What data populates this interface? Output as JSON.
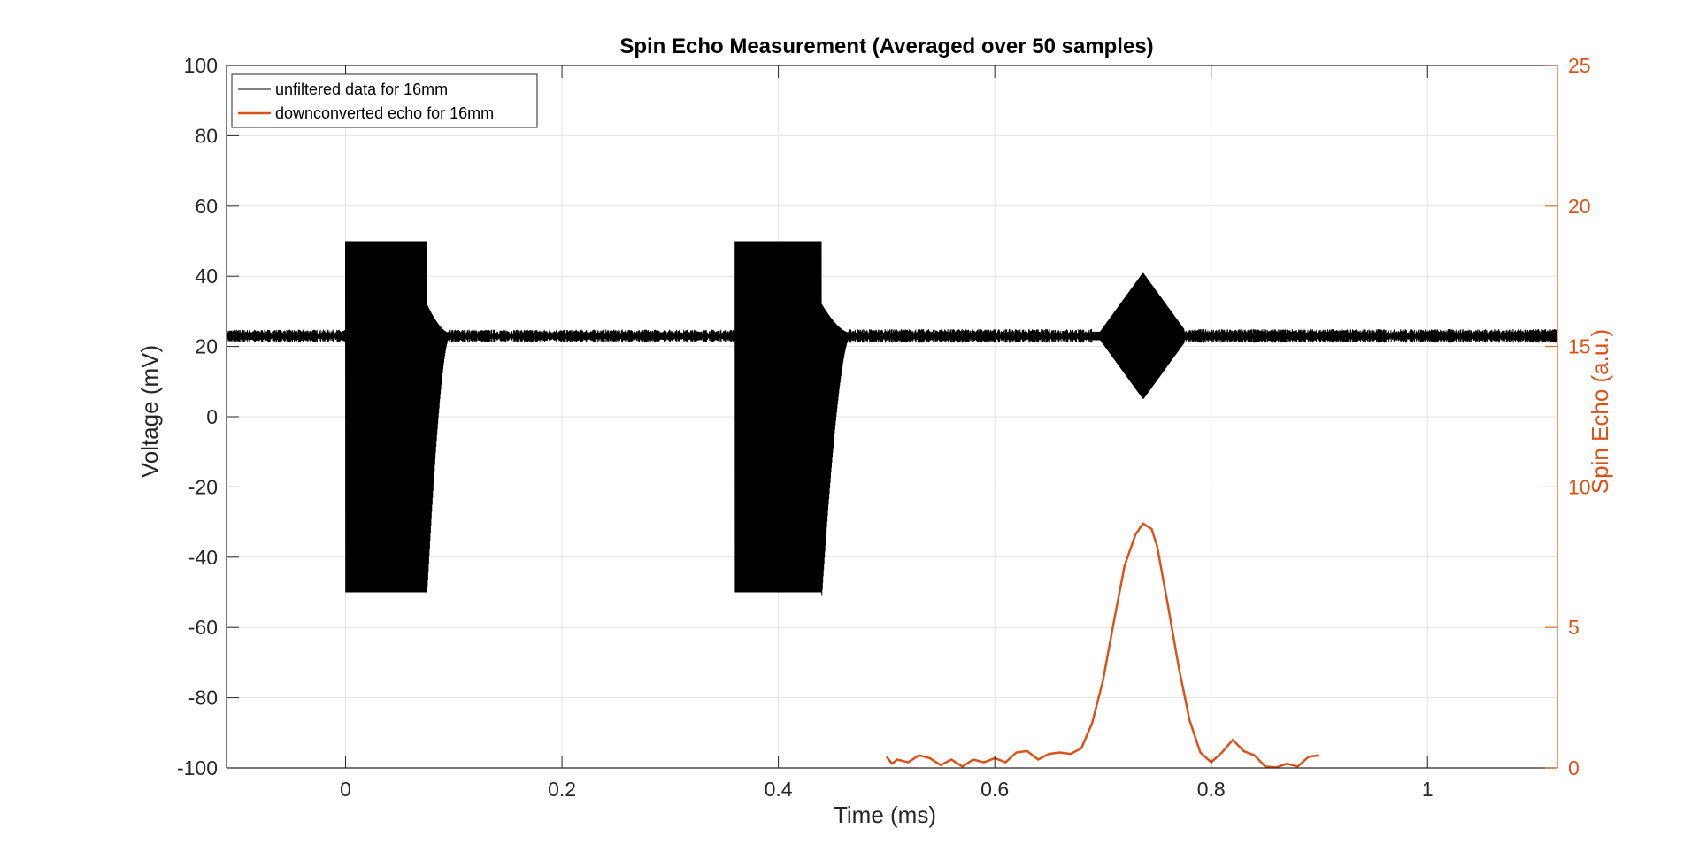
{
  "chart_data": {
    "type": "line",
    "title": "Spin Echo Measurement (Averaged over 50 samples)",
    "xlabel": "Time (ms)",
    "ylabel_left": "Voltage (mV)",
    "ylabel_right": "Spin Echo (a.u.)",
    "xlim": [
      -0.11,
      1.12
    ],
    "ylim_left": [
      -100,
      100
    ],
    "ylim_right": [
      0,
      25
    ],
    "xticks": [
      0,
      0.2,
      0.4,
      0.6,
      0.8,
      1
    ],
    "xtick_labels": [
      "0",
      "0.2",
      "0.4",
      "0.6",
      "0.8",
      "1"
    ],
    "yticks_left": [
      100,
      80,
      60,
      40,
      20,
      0,
      -20,
      -40,
      -60,
      -80,
      -100
    ],
    "ytick_labels_left": [
      "100",
      "80",
      "60",
      "40",
      "20",
      "0",
      "-20",
      "-40",
      "-60",
      "-80",
      "-100"
    ],
    "yticks_right": [
      25,
      20,
      15,
      10,
      5,
      0
    ],
    "ytick_labels_right": [
      "25",
      "20",
      "15",
      "10",
      "5",
      "0"
    ],
    "grid": true,
    "legend_position": "top-left",
    "colors": {
      "unfiltered": "#000000",
      "echo": "#D95319",
      "grid": "#e3e3e3",
      "axis": "#262626"
    },
    "series": [
      {
        "name": "unfiltered data for 16mm",
        "axis": "left",
        "baseline_mV": 23,
        "segments": [
          {
            "kind": "noise",
            "x_start": -0.11,
            "x_end": 0.0,
            "amp": 1.2
          },
          {
            "kind": "block",
            "x_start": 0.0,
            "x_end": 0.075,
            "y_min": -50,
            "y_max": 50
          },
          {
            "kind": "decay",
            "x_start": 0.075,
            "x_end": 0.095,
            "y_min_start": -50,
            "y_max_start": 50
          },
          {
            "kind": "noise",
            "x_start": 0.095,
            "x_end": 0.36,
            "amp": 1.2
          },
          {
            "kind": "block",
            "x_start": 0.36,
            "x_end": 0.44,
            "y_min": -50,
            "y_max": 50
          },
          {
            "kind": "decay",
            "x_start": 0.44,
            "x_end": 0.465,
            "y_min_start": -50,
            "y_max_start": 50
          },
          {
            "kind": "noise",
            "x_start": 0.465,
            "x_end": 0.69,
            "amp": 1.3
          },
          {
            "kind": "echo",
            "x_start": 0.69,
            "x_end": 0.775,
            "peak_x": 0.737,
            "peak_amp": 18
          },
          {
            "kind": "noise",
            "x_start": 0.775,
            "x_end": 1.12,
            "amp": 1.3
          }
        ]
      },
      {
        "name": "downconverted echo for 16mm",
        "axis": "right",
        "x": [
          0.5,
          0.505,
          0.51,
          0.52,
          0.53,
          0.54,
          0.55,
          0.56,
          0.57,
          0.58,
          0.59,
          0.6,
          0.61,
          0.62,
          0.63,
          0.64,
          0.65,
          0.66,
          0.67,
          0.68,
          0.69,
          0.7,
          0.71,
          0.72,
          0.73,
          0.737,
          0.745,
          0.75,
          0.76,
          0.77,
          0.78,
          0.79,
          0.8,
          0.81,
          0.82,
          0.83,
          0.84,
          0.85,
          0.86,
          0.87,
          0.88,
          0.89,
          0.9
        ],
        "values": [
          0.4,
          0.15,
          0.3,
          0.2,
          0.45,
          0.35,
          0.1,
          0.3,
          0.05,
          0.3,
          0.2,
          0.35,
          0.2,
          0.55,
          0.6,
          0.3,
          0.5,
          0.55,
          0.5,
          0.7,
          1.6,
          3.1,
          5.2,
          7.2,
          8.3,
          8.7,
          8.5,
          7.9,
          5.8,
          3.6,
          1.7,
          0.55,
          0.2,
          0.55,
          1.0,
          0.6,
          0.45,
          0.05,
          0.02,
          0.15,
          0.05,
          0.4,
          0.45
        ]
      }
    ]
  }
}
